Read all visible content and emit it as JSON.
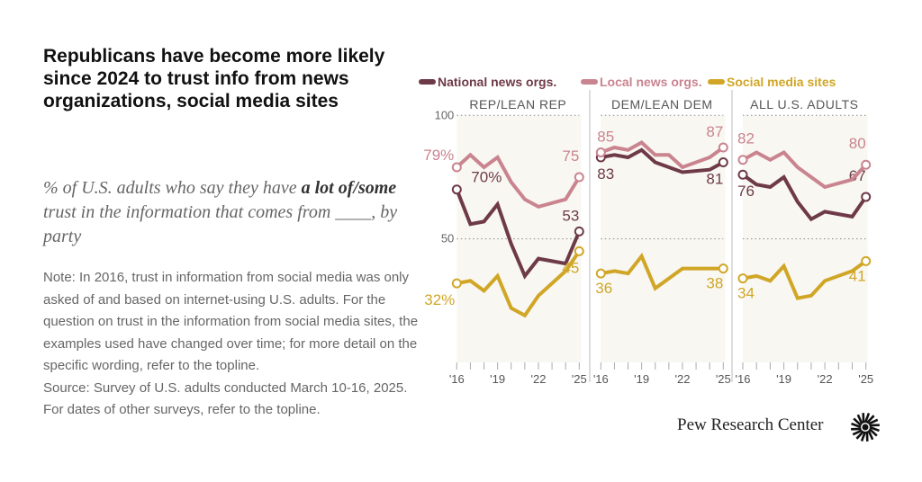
{
  "title": "Republicans have become more likely since 2024 to trust info from news organizations, social media sites",
  "subtitle": {
    "pre": "% of U.S. adults who say they have ",
    "bold": "a lot of/some",
    "post": " trust in the information that comes from ____, by party"
  },
  "note": "Note: In 2016, trust in information from social media was only asked of and based on internet-using U.S. adults. For the question on trust in the information from social media sites, the examples used have changed over time; for more detail on the specific wording, refer to the topline.",
  "source": "Source: Survey of U.S. adults conducted March 10-16, 2025. For dates of other surveys, refer to the topline.",
  "logo": "Pew Research Center",
  "chart_data": {
    "type": "line",
    "x": [
      2016,
      2017,
      2018,
      2019,
      2020,
      2021,
      2022,
      2024,
      2025
    ],
    "x_tick_labels": [
      "'16",
      "'19",
      "'22",
      "'25"
    ],
    "y_ticks": [
      "100",
      "50"
    ],
    "ylim": [
      0,
      100
    ],
    "grid": "dotted at 50 and 100",
    "legend": [
      "National news orgs.",
      "Local news orgs.",
      "Social media sites"
    ],
    "legend_placement": "top",
    "colors": {
      "National news orgs.": "#6e3a48",
      "Local news orgs.": "#c9848f",
      "Social media sites": "#d1a627"
    },
    "panels": [
      {
        "title": "REP/LEAN REP",
        "series": [
          {
            "name": "National news orgs.",
            "values": [
              70,
              56,
              57,
              64,
              48,
              35,
              42,
              40,
              53
            ],
            "start_label": "70%",
            "end_label": "53"
          },
          {
            "name": "Local news orgs.",
            "values": [
              79,
              84,
              79,
              83,
              73,
              66,
              63,
              66,
              75
            ],
            "start_label": "79%",
            "end_label": "75"
          },
          {
            "name": "Social media sites",
            "values": [
              32,
              33,
              29,
              35,
              22,
              19,
              27,
              37,
              45
            ],
            "start_label": "32%",
            "end_label": "45"
          }
        ]
      },
      {
        "title": "DEM/LEAN DEM",
        "series": [
          {
            "name": "National news orgs.",
            "values": [
              83,
              84,
              83,
              86,
              81,
              79,
              77,
              78,
              81
            ],
            "start_label": "83",
            "end_label": "81"
          },
          {
            "name": "Local news orgs.",
            "values": [
              85,
              87,
              86,
              89,
              84,
              84,
              79,
              83,
              87
            ],
            "start_label": "85",
            "end_label": "87"
          },
          {
            "name": "Social media sites",
            "values": [
              36,
              37,
              36,
              43,
              30,
              34,
              38,
              38,
              38
            ],
            "start_label": "36",
            "end_label": "38"
          }
        ]
      },
      {
        "title": "ALL U.S. ADULTS",
        "series": [
          {
            "name": "National news orgs.",
            "values": [
              76,
              72,
              71,
              75,
              65,
              58,
              61,
              59,
              67
            ],
            "start_label": "76",
            "end_label": "67"
          },
          {
            "name": "Local news orgs.",
            "values": [
              82,
              85,
              82,
              85,
              79,
              75,
              71,
              74,
              80
            ],
            "start_label": "82",
            "end_label": "80"
          },
          {
            "name": "Social media sites",
            "values": [
              34,
              35,
              33,
              39,
              26,
              27,
              33,
              37,
              41
            ],
            "start_label": "34",
            "end_label": "41"
          }
        ]
      }
    ]
  }
}
